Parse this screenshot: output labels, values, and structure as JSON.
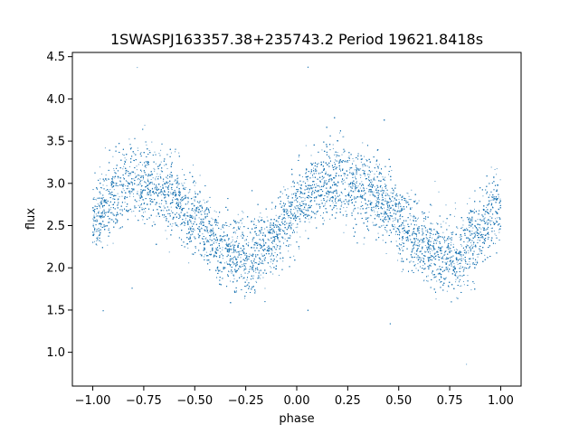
{
  "chart_data": {
    "type": "scatter",
    "title": "1SWASPJ163357.38+235743.2 Period 19621.8418s",
    "xlabel": "phase",
    "ylabel": "flux",
    "xlim": [
      -1.1,
      1.1
    ],
    "ylim": [
      0.6,
      4.55
    ],
    "x_ticks": [
      -1.0,
      -0.75,
      -0.5,
      -0.25,
      0.0,
      0.25,
      0.5,
      0.75,
      1.0
    ],
    "x_tick_labels": [
      "−1.00",
      "−0.75",
      "−0.50",
      "−0.25",
      "0.00",
      "0.25",
      "0.50",
      "0.75",
      "1.00"
    ],
    "y_ticks": [
      1.0,
      1.5,
      2.0,
      2.5,
      3.0,
      3.5,
      4.0,
      4.5
    ],
    "y_tick_labels": [
      "1.0",
      "1.5",
      "2.0",
      "2.5",
      "3.0",
      "3.5",
      "4.0",
      "4.5"
    ],
    "grid": false,
    "point_color": "#1f77b4",
    "series": [
      {
        "phase_range": [
          -1.0,
          1.0
        ],
        "mean_flux_profile": {
          "phase": [
            -1.0,
            -0.9,
            -0.8,
            -0.75,
            -0.7,
            -0.6,
            -0.5,
            -0.4,
            -0.3,
            -0.25,
            -0.2,
            -0.1,
            0.0,
            0.1,
            0.2,
            0.25,
            0.3,
            0.4,
            0.5,
            0.6,
            0.7,
            0.75,
            0.8,
            0.9,
            1.0
          ],
          "flux": [
            2.55,
            2.9,
            3.0,
            3.0,
            2.98,
            2.85,
            2.6,
            2.3,
            2.15,
            2.1,
            2.15,
            2.4,
            2.75,
            2.95,
            3.0,
            3.0,
            2.98,
            2.85,
            2.6,
            2.3,
            2.15,
            2.1,
            2.15,
            2.4,
            2.75
          ]
        },
        "scatter_sigma": 0.22,
        "n_points": 16000
      }
    ]
  }
}
